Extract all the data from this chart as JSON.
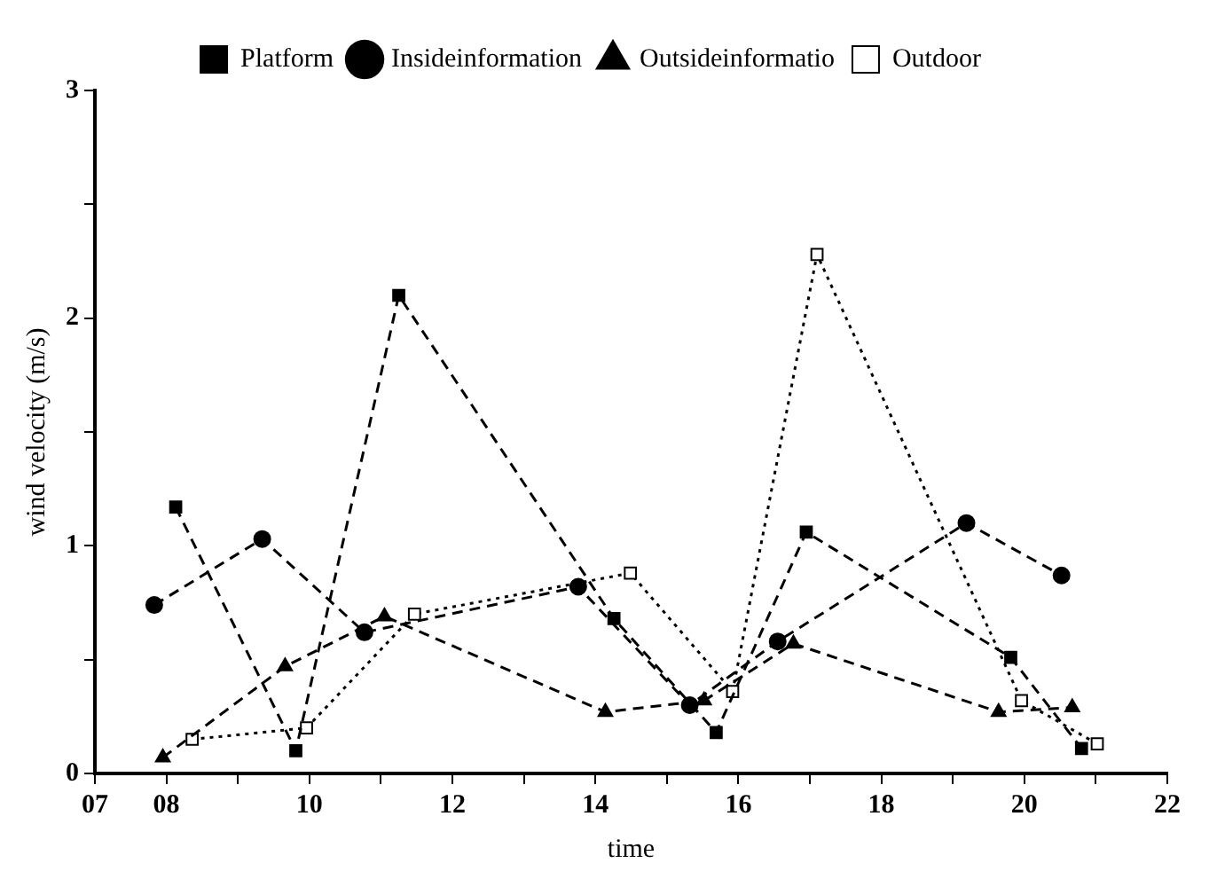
{
  "chart_data": {
    "type": "line",
    "xlabel": "time",
    "ylabel": "wind velocity (m/s)",
    "xlim": [
      7,
      22
    ],
    "xticks": [
      {
        "value": 7,
        "label": "07"
      },
      {
        "value": 8,
        "label": "08"
      },
      {
        "value": 9,
        "label": null
      },
      10,
      {
        "value": 11,
        "label": null
      },
      12,
      {
        "value": 13,
        "label": null
      },
      14,
      {
        "value": 15,
        "label": null
      },
      16,
      {
        "value": 17,
        "label": null
      },
      18,
      {
        "value": 19,
        "label": null
      },
      20,
      {
        "value": 21,
        "label": null
      },
      22
    ],
    "ylim": [
      0,
      3
    ],
    "yticks": [
      0,
      {
        "value": 0.5,
        "label": null
      },
      1,
      {
        "value": 1.5,
        "label": null
      },
      2,
      {
        "value": 2.5,
        "label": null
      },
      3
    ],
    "grid": false,
    "legend": "top",
    "series": [
      {
        "name": "Platform",
        "color": "#000000",
        "marker": "square",
        "line_style": "dashed",
        "x": [
          8.13,
          9.81,
          11.25,
          14.26,
          15.69,
          16.95,
          19.81,
          20.8
        ],
        "values": [
          1.17,
          0.1,
          2.1,
          0.68,
          0.18,
          1.06,
          0.51,
          0.11
        ]
      },
      {
        "name": "Insideinformation",
        "color": "#000000",
        "marker": "circle",
        "line_style": "dashed",
        "x": [
          7.83,
          9.34,
          10.77,
          13.76,
          15.32,
          16.55,
          19.19,
          20.52
        ],
        "values": [
          0.74,
          1.03,
          0.62,
          0.82,
          0.3,
          0.58,
          1.1,
          0.87
        ]
      },
      {
        "name": "Outsideinformatio",
        "color": "#000000",
        "marker": "triangle",
        "line_style": "dashed",
        "x": [
          7.95,
          9.66,
          11.05,
          14.14,
          15.52,
          16.77,
          19.64,
          20.67
        ],
        "values": [
          0.07,
          0.47,
          0.69,
          0.27,
          0.32,
          0.57,
          0.27,
          0.29
        ]
      },
      {
        "name": "Outdoor",
        "color": "#000000",
        "marker": "square",
        "line_style": "dotted",
        "x": [
          8.36,
          9.96,
          11.47,
          14.49,
          15.92,
          17.1,
          19.96,
          21.02
        ],
        "values": [
          0.15,
          0.2,
          0.7,
          0.88,
          0.36,
          2.28,
          0.32,
          0.13
        ]
      }
    ]
  }
}
